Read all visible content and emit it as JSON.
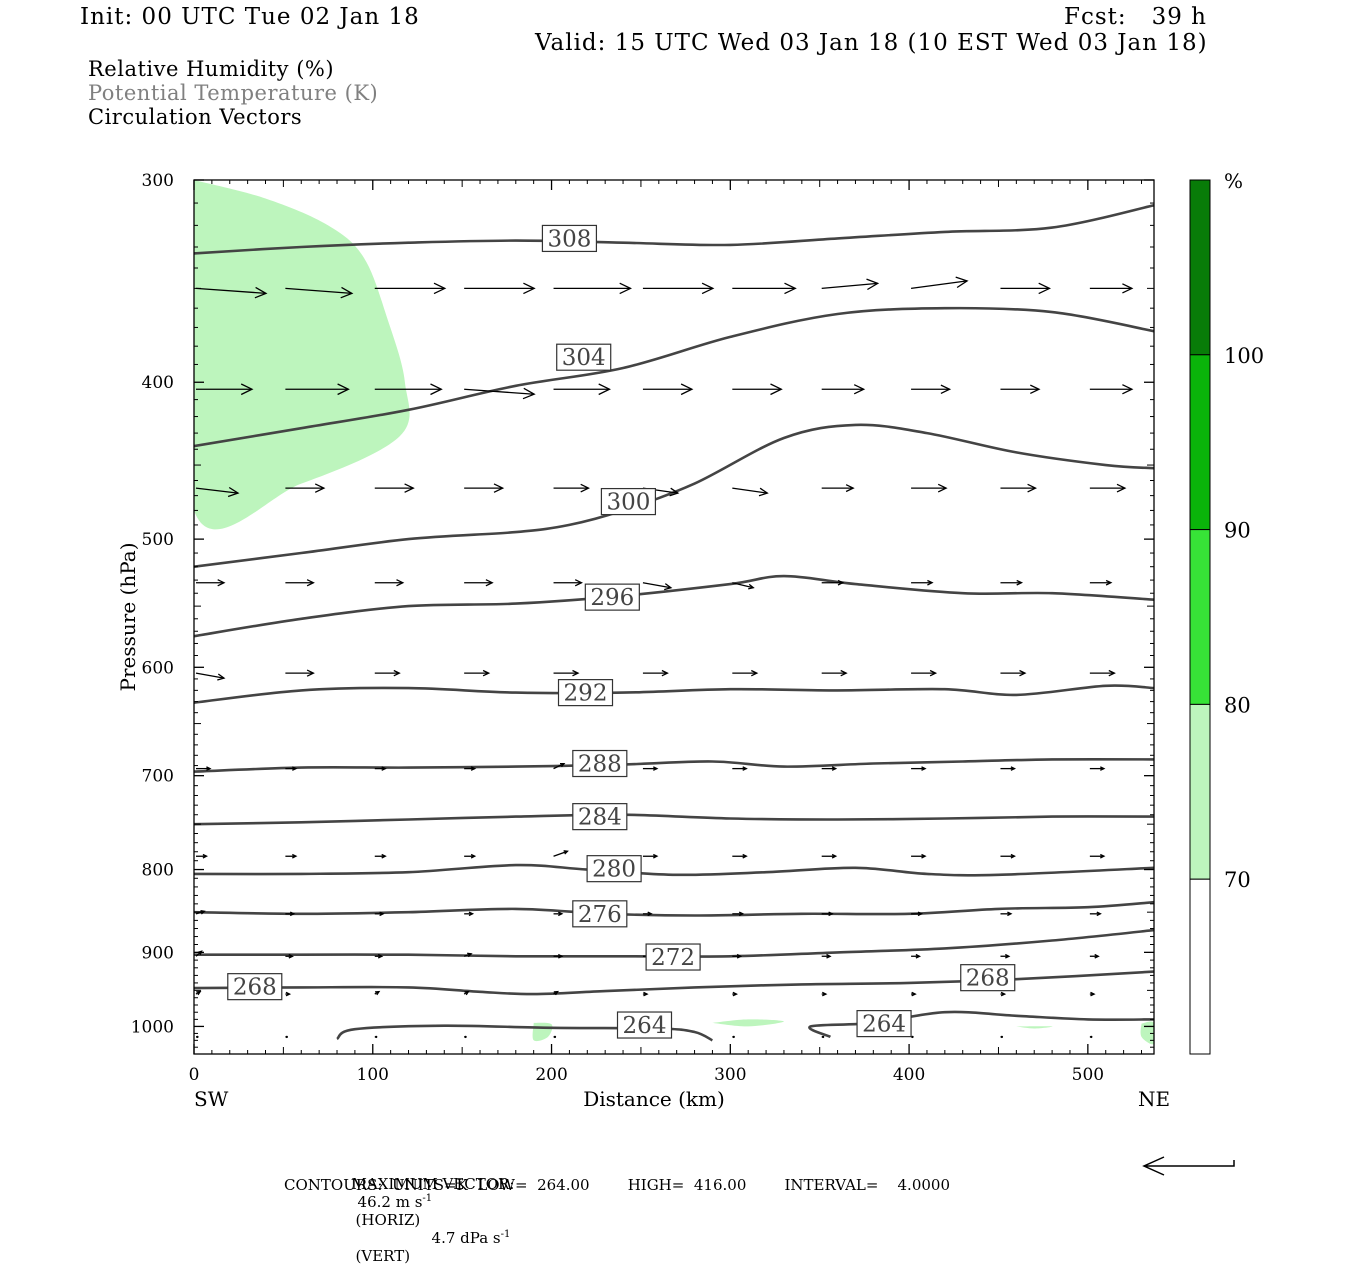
{
  "header": {
    "init": "Init: 00 UTC Tue 02 Jan 18",
    "fcst": "Fcst:   39 h",
    "valid": "Valid: 15 UTC Wed 03 Jan 18 (10 EST Wed 03 Jan 18)"
  },
  "legend": {
    "line1": "Relative Humidity (%)",
    "line2": "Potential Temperature (K)",
    "line3": "Circulation Vectors"
  },
  "footer": {
    "max_vector_label": "MAXIMUM VECTOR:",
    "horiz_value": "46.2 m s",
    "horiz_exp": "-1",
    "horiz_label": "(HORIZ)",
    "vert_value": "4.7 dPa s",
    "vert_exp": "-1",
    "vert_label": "(VERT)",
    "contours_line": "CONTOURS:  UNITS=K  LOW=  264.00        HIGH=  416.00        INTERVAL=    4.0000"
  },
  "colors": {
    "rh_70": "#bdf5bd",
    "rh_80": "#37e337",
    "rh_90": "#0ab40a",
    "rh_100": "#087c08",
    "contour": "#444444"
  },
  "chart_data": {
    "type": "cross-section",
    "xlabel": "Distance (km)",
    "ylabel": "Pressure (hPa)",
    "x_ticks": [
      0,
      100,
      200,
      300,
      400,
      500
    ],
    "x_tick_labels": [
      "0",
      "100",
      "200",
      "300",
      "400",
      "500"
    ],
    "xlim": [
      0,
      537
    ],
    "ylim": [
      300,
      1040
    ],
    "y_scale": "log-pressure",
    "y_ticks": [
      300,
      400,
      500,
      600,
      700,
      800,
      900,
      1000
    ],
    "y_tick_labels": [
      "300",
      "400",
      "500",
      "600",
      "700",
      "800",
      "900",
      "1000"
    ],
    "x_end_labels": {
      "left": "SW",
      "right": "NE"
    },
    "colorbar": {
      "unit": "%",
      "levels": [
        70,
        80,
        90,
        100
      ],
      "level_labels": [
        "70",
        "80",
        "90",
        "100"
      ]
    },
    "theta_contours": [
      {
        "value": 308,
        "label": "308",
        "points": [
          [
            0,
            333
          ],
          [
            60,
            330
          ],
          [
            120,
            328
          ],
          [
            180,
            327
          ],
          [
            240,
            328
          ],
          [
            300,
            329
          ],
          [
            360,
            326
          ],
          [
            420,
            323
          ],
          [
            480,
            321
          ],
          [
            537,
            311
          ]
        ]
      },
      {
        "value": 304,
        "label": "304",
        "points": [
          [
            0,
            438
          ],
          [
            60,
            427
          ],
          [
            120,
            416
          ],
          [
            180,
            402
          ],
          [
            240,
            392
          ],
          [
            300,
            375
          ],
          [
            360,
            363
          ],
          [
            420,
            360
          ],
          [
            480,
            362
          ],
          [
            537,
            372
          ]
        ]
      },
      {
        "value": 300,
        "label": "300",
        "points": [
          [
            0,
            520
          ],
          [
            60,
            510
          ],
          [
            120,
            500
          ],
          [
            180,
            495
          ],
          [
            210,
            490
          ],
          [
            240,
            480
          ],
          [
            280,
            462
          ],
          [
            330,
            433
          ],
          [
            370,
            425
          ],
          [
            410,
            430
          ],
          [
            460,
            442
          ],
          [
            510,
            450
          ],
          [
            537,
            452
          ]
        ]
      },
      {
        "value": 296,
        "label": "296",
        "points": [
          [
            0,
            574
          ],
          [
            60,
            560
          ],
          [
            120,
            550
          ],
          [
            180,
            548
          ],
          [
            240,
            542
          ],
          [
            300,
            533
          ],
          [
            330,
            527
          ],
          [
            370,
            533
          ],
          [
            430,
            540
          ],
          [
            480,
            540
          ],
          [
            537,
            545
          ]
        ]
      },
      {
        "value": 292,
        "label": "292",
        "points": [
          [
            0,
            631
          ],
          [
            60,
            620
          ],
          [
            120,
            618
          ],
          [
            180,
            622
          ],
          [
            240,
            622
          ],
          [
            300,
            619
          ],
          [
            360,
            620
          ],
          [
            420,
            619
          ],
          [
            460,
            624
          ],
          [
            510,
            616
          ],
          [
            537,
            618
          ]
        ]
      },
      {
        "value": 288,
        "label": "288",
        "points": [
          [
            0,
            696
          ],
          [
            60,
            692
          ],
          [
            120,
            692
          ],
          [
            180,
            691
          ],
          [
            240,
            689
          ],
          [
            290,
            686
          ],
          [
            330,
            691
          ],
          [
            380,
            688
          ],
          [
            430,
            686
          ],
          [
            480,
            684
          ],
          [
            537,
            684
          ]
        ]
      },
      {
        "value": 284,
        "label": "284",
        "points": [
          [
            0,
            750
          ],
          [
            60,
            748
          ],
          [
            120,
            745
          ],
          [
            180,
            742
          ],
          [
            240,
            740
          ],
          [
            300,
            744
          ],
          [
            360,
            745
          ],
          [
            420,
            744
          ],
          [
            480,
            742
          ],
          [
            537,
            742
          ]
        ]
      },
      {
        "value": 280,
        "label": "280",
        "points": [
          [
            0,
            805
          ],
          [
            60,
            805
          ],
          [
            120,
            803
          ],
          [
            180,
            795
          ],
          [
            220,
            800
          ],
          [
            270,
            806
          ],
          [
            320,
            803
          ],
          [
            370,
            798
          ],
          [
            410,
            805
          ],
          [
            450,
            806
          ],
          [
            537,
            798
          ]
        ]
      },
      {
        "value": 276,
        "label": "276",
        "points": [
          [
            0,
            850
          ],
          [
            60,
            852
          ],
          [
            120,
            850
          ],
          [
            180,
            846
          ],
          [
            230,
            852
          ],
          [
            280,
            854
          ],
          [
            340,
            852
          ],
          [
            400,
            852
          ],
          [
            450,
            846
          ],
          [
            500,
            844
          ],
          [
            537,
            838
          ]
        ]
      },
      {
        "value": 272,
        "label": "272",
        "points": [
          [
            0,
            903
          ],
          [
            60,
            903
          ],
          [
            120,
            903
          ],
          [
            180,
            905
          ],
          [
            240,
            905
          ],
          [
            300,
            905
          ],
          [
            360,
            900
          ],
          [
            420,
            895
          ],
          [
            480,
            885
          ],
          [
            537,
            872
          ]
        ]
      },
      {
        "value": 268,
        "label": "268",
        "points": [
          [
            0,
            947
          ],
          [
            60,
            946
          ],
          [
            120,
            946
          ],
          [
            160,
            952
          ],
          [
            190,
            955
          ],
          [
            230,
            951
          ],
          [
            280,
            946
          ],
          [
            340,
            942
          ],
          [
            400,
            940
          ],
          [
            460,
            935
          ],
          [
            537,
            925
          ]
        ]
      },
      {
        "value": 264,
        "label": "264",
        "points": [
          [
            80,
            1018
          ],
          [
            90,
            1004
          ],
          [
            140,
            999
          ],
          [
            200,
            1002
          ],
          [
            260,
            1003
          ],
          [
            280,
            1008
          ],
          [
            290,
            1020
          ]
        ]
      },
      {
        "value": 264,
        "label": "264",
        "points": [
          [
            356,
            1015
          ],
          [
            345,
            1000
          ],
          [
            380,
            995
          ],
          [
            420,
            980
          ],
          [
            460,
            985
          ],
          [
            500,
            990
          ],
          [
            537,
            990
          ]
        ]
      }
    ],
    "theta_labels": [
      {
        "text": "308",
        "x": 210,
        "p": 326
      },
      {
        "text": "304",
        "x": 218,
        "p": 386
      },
      {
        "text": "300",
        "x": 243,
        "p": 474
      },
      {
        "text": "296",
        "x": 234,
        "p": 543
      },
      {
        "text": "292",
        "x": 219,
        "p": 622
      },
      {
        "text": "288",
        "x": 227,
        "p": 688
      },
      {
        "text": "284",
        "x": 227,
        "p": 742
      },
      {
        "text": "280",
        "x": 235,
        "p": 799
      },
      {
        "text": "276",
        "x": 227,
        "p": 852
      },
      {
        "text": "272",
        "x": 268,
        "p": 906
      },
      {
        "text": "268",
        "x": 34,
        "p": 945
      },
      {
        "text": "268",
        "x": 444,
        "p": 933
      },
      {
        "text": "264",
        "x": 252,
        "p": 998
      },
      {
        "text": "264",
        "x": 386,
        "p": 996
      }
    ],
    "rh_regions": [
      {
        "level": 70,
        "points": [
          [
            0,
            300
          ],
          [
            40,
            308
          ],
          [
            75,
            320
          ],
          [
            95,
            335
          ],
          [
            108,
            365
          ],
          [
            118,
            400
          ],
          [
            115,
            432
          ],
          [
            60,
            462
          ],
          [
            0,
            480
          ]
        ]
      },
      {
        "level": 70,
        "points": [
          [
            190,
            995
          ],
          [
            200,
            997
          ],
          [
            198,
            1015
          ],
          [
            190,
            1020
          ]
        ]
      },
      {
        "level": 70,
        "points": [
          [
            290,
            995
          ],
          [
            310,
            990
          ],
          [
            330,
            993
          ],
          [
            310,
            1000
          ]
        ]
      },
      {
        "level": 70,
        "points": [
          [
            460,
            1000
          ],
          [
            480,
            1000
          ],
          [
            470,
            1003
          ]
        ]
      },
      {
        "level": 70,
        "points": [
          [
            530,
            996
          ],
          [
            537,
            995
          ],
          [
            537,
            1025
          ],
          [
            530,
            1015
          ]
        ]
      }
    ],
    "vector_rows": [
      {
        "p": 350,
        "x": [
          0,
          50,
          100,
          150,
          200,
          250,
          300,
          350,
          400,
          450,
          500
        ],
        "u": [
          10,
          9.5,
          10,
          10,
          11,
          10,
          9,
          8,
          8,
          7,
          6
        ],
        "w": [
          0.2,
          0.2,
          0,
          0,
          0,
          0,
          0,
          -0.2,
          -0.3,
          0,
          0
        ]
      },
      {
        "p": 404,
        "x": [
          0,
          50,
          100,
          150,
          200,
          250,
          300,
          350,
          400,
          450,
          500
        ],
        "u": [
          8,
          9,
          9.5,
          10,
          8,
          7,
          7,
          6,
          5.5,
          5.5,
          6
        ],
        "w": [
          0,
          0,
          0,
          0.2,
          0,
          0,
          0,
          0,
          0,
          0,
          0
        ]
      },
      {
        "p": 465,
        "x": [
          0,
          50,
          100,
          150,
          200,
          250,
          300,
          350,
          400,
          450,
          500
        ],
        "u": [
          6,
          5.5,
          5.5,
          5.5,
          5,
          5,
          5,
          4.5,
          5,
          5,
          5
        ],
        "w": [
          0.2,
          0,
          0,
          0,
          0,
          0.2,
          0.2,
          0,
          0,
          0,
          0
        ]
      },
      {
        "p": 532,
        "x": [
          0,
          50,
          100,
          150,
          200,
          250,
          300,
          350,
          400,
          450,
          500
        ],
        "u": [
          4,
          4,
          4,
          4,
          4,
          4,
          3,
          3,
          3,
          3,
          3
        ],
        "w": [
          0,
          0,
          0,
          0,
          0,
          0.2,
          0.2,
          0,
          0,
          0,
          0
        ]
      },
      {
        "p": 605,
        "x": [
          0,
          50,
          100,
          150,
          200,
          250,
          300,
          350,
          400,
          450,
          500
        ],
        "u": [
          4,
          4,
          3.5,
          3.5,
          3.5,
          3.5,
          3.5,
          3.5,
          3.5,
          3.5,
          3.5
        ],
        "w": [
          0.2,
          0,
          0,
          0,
          0,
          0,
          0,
          0,
          0,
          0,
          0
        ]
      },
      {
        "p": 693,
        "x": [
          0,
          50,
          100,
          150,
          200,
          250,
          300,
          350,
          400,
          450,
          500
        ],
        "u": [
          2,
          1.5,
          1.5,
          1.5,
          1.5,
          2,
          2,
          2,
          2,
          2,
          2
        ],
        "w": [
          0,
          0,
          0,
          0,
          -0.2,
          0,
          0,
          0,
          0,
          0,
          0
        ]
      },
      {
        "p": 785,
        "x": [
          0,
          50,
          100,
          150,
          200,
          250,
          300,
          350,
          400,
          450,
          500
        ],
        "u": [
          1.5,
          1.5,
          1.5,
          1.5,
          2,
          2,
          2,
          2,
          2,
          2,
          2
        ],
        "w": [
          0,
          0,
          0,
          0,
          -0.2,
          0,
          0,
          0,
          0,
          0,
          0
        ]
      },
      {
        "p": 852,
        "x": [
          0,
          50,
          100,
          150,
          200,
          250,
          300,
          350,
          400,
          450,
          500
        ],
        "u": [
          1.2,
          1.2,
          1.2,
          1.2,
          1.2,
          1.2,
          1.5,
          1.5,
          1.5,
          1.5,
          1.5
        ],
        "w": [
          -0.1,
          0,
          0,
          0,
          0,
          0,
          0,
          0,
          0,
          0,
          0
        ]
      },
      {
        "p": 905,
        "x": [
          0,
          50,
          100,
          150,
          200,
          250,
          300,
          350,
          400,
          450,
          500
        ],
        "u": [
          0.8,
          1,
          1,
          1,
          1.2,
          1.2,
          1.2,
          1.2,
          1.2,
          1.2,
          1.2
        ],
        "w": [
          -0.2,
          0,
          0,
          -0.1,
          0,
          0,
          0,
          0,
          0,
          0,
          0
        ]
      },
      {
        "p": 955,
        "x": [
          0,
          50,
          100,
          150,
          200,
          250,
          300,
          350,
          400,
          450,
          500
        ],
        "u": [
          0.6,
          0.6,
          0.6,
          0.6,
          0.6,
          0.6,
          0.6,
          0.6,
          0.6,
          0.6,
          0.6
        ],
        "w": [
          -0.1,
          0,
          -0.1,
          -0.1,
          -0.1,
          0,
          0,
          0,
          0,
          0,
          0
        ]
      },
      {
        "p": 1015,
        "x": [
          0,
          50,
          100,
          150,
          200,
          250,
          300,
          350,
          400,
          450,
          500
        ],
        "u": [
          0.2,
          0.2,
          0.2,
          0.2,
          0.2,
          0.2,
          0.2,
          0.2,
          0.2,
          0.2,
          0.2
        ],
        "w": [
          0,
          0,
          0,
          0,
          0,
          0,
          0,
          0,
          0,
          0,
          0
        ]
      }
    ]
  }
}
